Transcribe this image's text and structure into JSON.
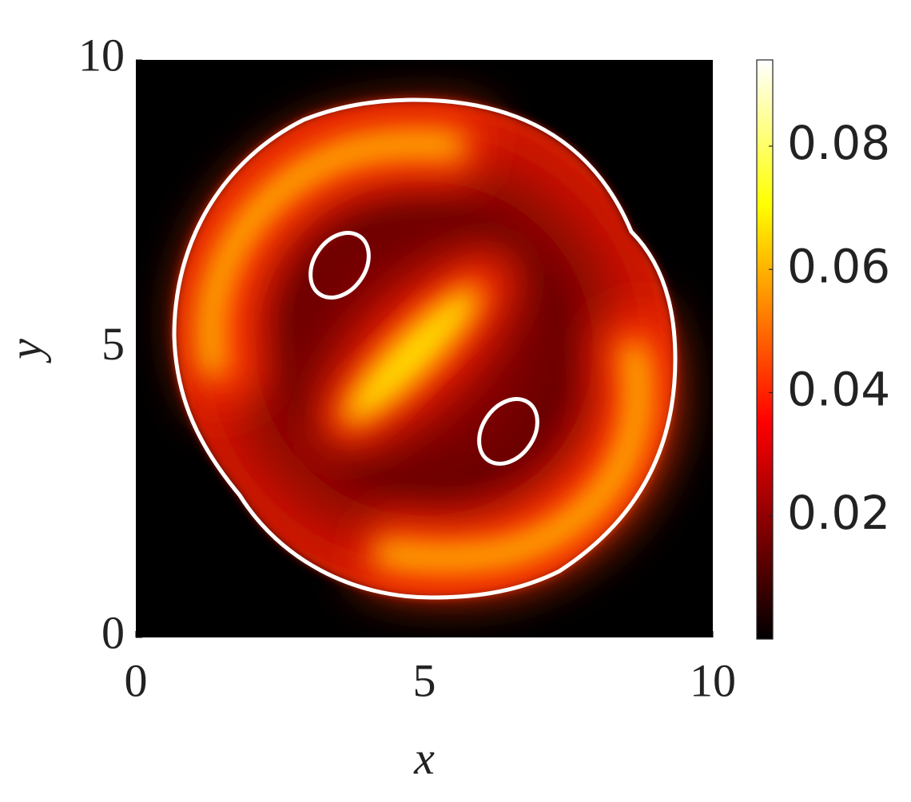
{
  "chart_data": {
    "type": "heatmap",
    "x_label": "x",
    "y_label": "y",
    "xlim": [
      0,
      10
    ],
    "xticks": [
      0,
      5,
      10
    ],
    "ylim": [
      0,
      10
    ],
    "yticks": [
      0,
      5,
      10
    ],
    "colormap": "hot",
    "clim": [
      0,
      0.094
    ],
    "cticks": [
      0.02,
      0.04,
      0.06,
      0.08
    ]
  }
}
